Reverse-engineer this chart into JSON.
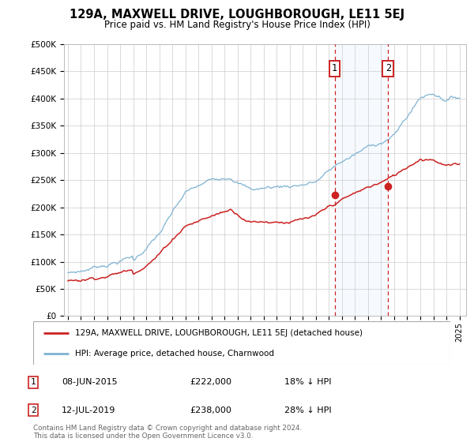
{
  "title": "129A, MAXWELL DRIVE, LOUGHBOROUGH, LE11 5EJ",
  "subtitle": "Price paid vs. HM Land Registry's House Price Index (HPI)",
  "ylim": [
    0,
    500000
  ],
  "xlim_start": 1994.7,
  "xlim_end": 2025.5,
  "hpi_color": "#7fb3d3",
  "price_color": "#cc2222",
  "point1_x": 2015.44,
  "point1_y": 222000,
  "point2_x": 2019.54,
  "point2_y": 238000,
  "point1_date": "08-JUN-2015",
  "point1_price": "£222,000",
  "point1_hpi": "18% ↓ HPI",
  "point2_date": "12-JUL-2019",
  "point2_price": "£238,000",
  "point2_hpi": "28% ↓ HPI",
  "legend1": "129A, MAXWELL DRIVE, LOUGHBOROUGH, LE11 5EJ (detached house)",
  "legend2": "HPI: Average price, detached house, Charnwood",
  "footnote": "Contains HM Land Registry data © Crown copyright and database right 2024.\nThis data is licensed under the Open Government Licence v3.0.",
  "background_color": "#ffffff",
  "grid_color": "#cccccc",
  "shaded_color": "#ddeeff"
}
